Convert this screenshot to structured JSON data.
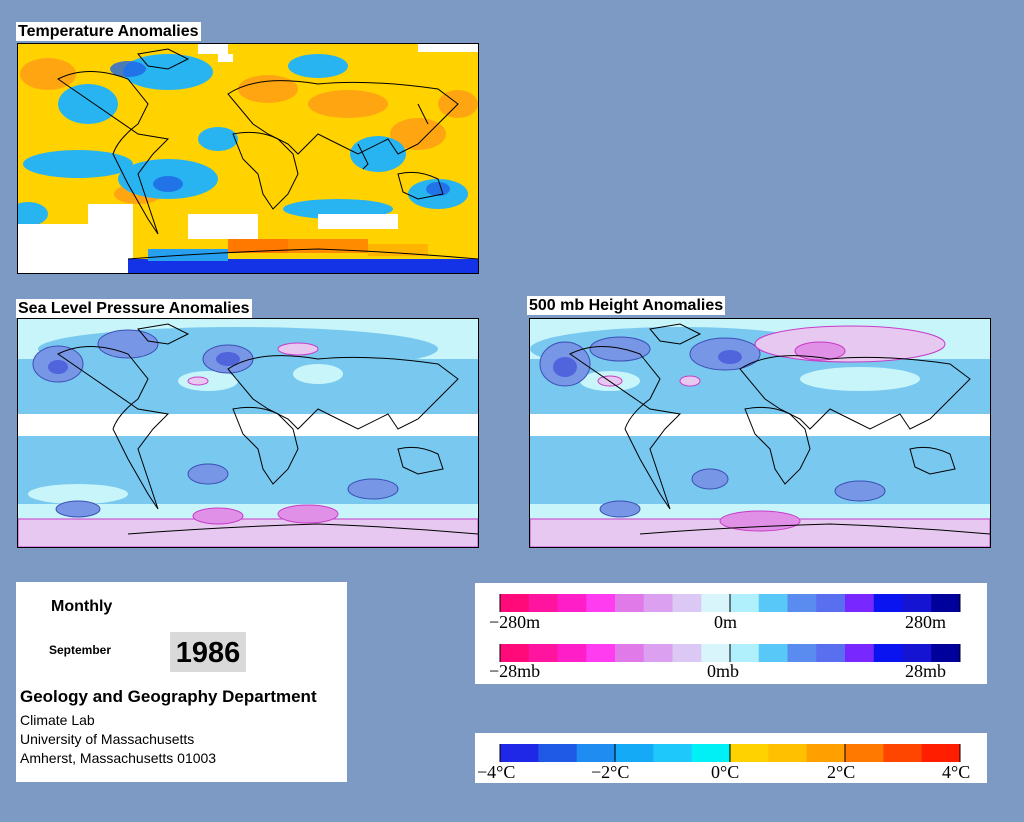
{
  "titles": {
    "temperature": "Temperature Anomalies",
    "slp": "Sea Level Pressure Anomalies",
    "height500": "500 mb Height Anomalies"
  },
  "info": {
    "frequency": "Monthly",
    "month": "September",
    "year": "1986",
    "department": "Geology and Geography Department",
    "lab": "Climate Lab",
    "university": "University of Massachusetts",
    "address": "Amherst, Massachusetts 01003"
  },
  "legends": {
    "height": {
      "labels": [
        "−280m",
        "0m",
        "280m"
      ],
      "colors": [
        "#ff0a78",
        "#ff14a0",
        "#ff1ec8",
        "#ff3cf0",
        "#e07ae8",
        "#dca0f0",
        "#dcc8f5",
        "#d7f5fa",
        "#b0f0fc",
        "#58c8f8",
        "#5a8cf0",
        "#5a6ef0",
        "#7828ff",
        "#0a14f0",
        "#1414d2",
        "#00009b"
      ]
    },
    "pressure": {
      "labels": [
        "−28mb",
        "0mb",
        "28mb"
      ],
      "colors": [
        "#ff0a78",
        "#ff14a0",
        "#ff1ec8",
        "#ff3cf0",
        "#e07ae8",
        "#dca0f0",
        "#dcc8f5",
        "#d7f5fa",
        "#b0f0fc",
        "#58c8f8",
        "#5a8cf0",
        "#5a6ef0",
        "#7828ff",
        "#0a14f0",
        "#1414d2",
        "#00009b"
      ]
    },
    "temperature": {
      "labels": [
        "−4°C",
        "−2°C",
        "0°C",
        "2°C",
        "4°C"
      ],
      "colors": [
        "#1e28e6",
        "#1e5ae6",
        "#1e8cf0",
        "#14aaf5",
        "#1ec8fa",
        "#00f0f5",
        "#ffd200",
        "#ffc000",
        "#ffa000",
        "#ff7800",
        "#ff4600",
        "#ff1e00"
      ]
    }
  },
  "colors": {
    "background": "#7c9ac3",
    "ocean_light": "#c8f5fa",
    "negative_mid": "#6ec8f0",
    "negative_deep": "#5064dc",
    "positive_light": "#e6c8f0",
    "positive_mid": "#e090e6",
    "warm": "#ffd200",
    "warm_deep": "#ff8c00",
    "cool": "#1eb4f0"
  }
}
